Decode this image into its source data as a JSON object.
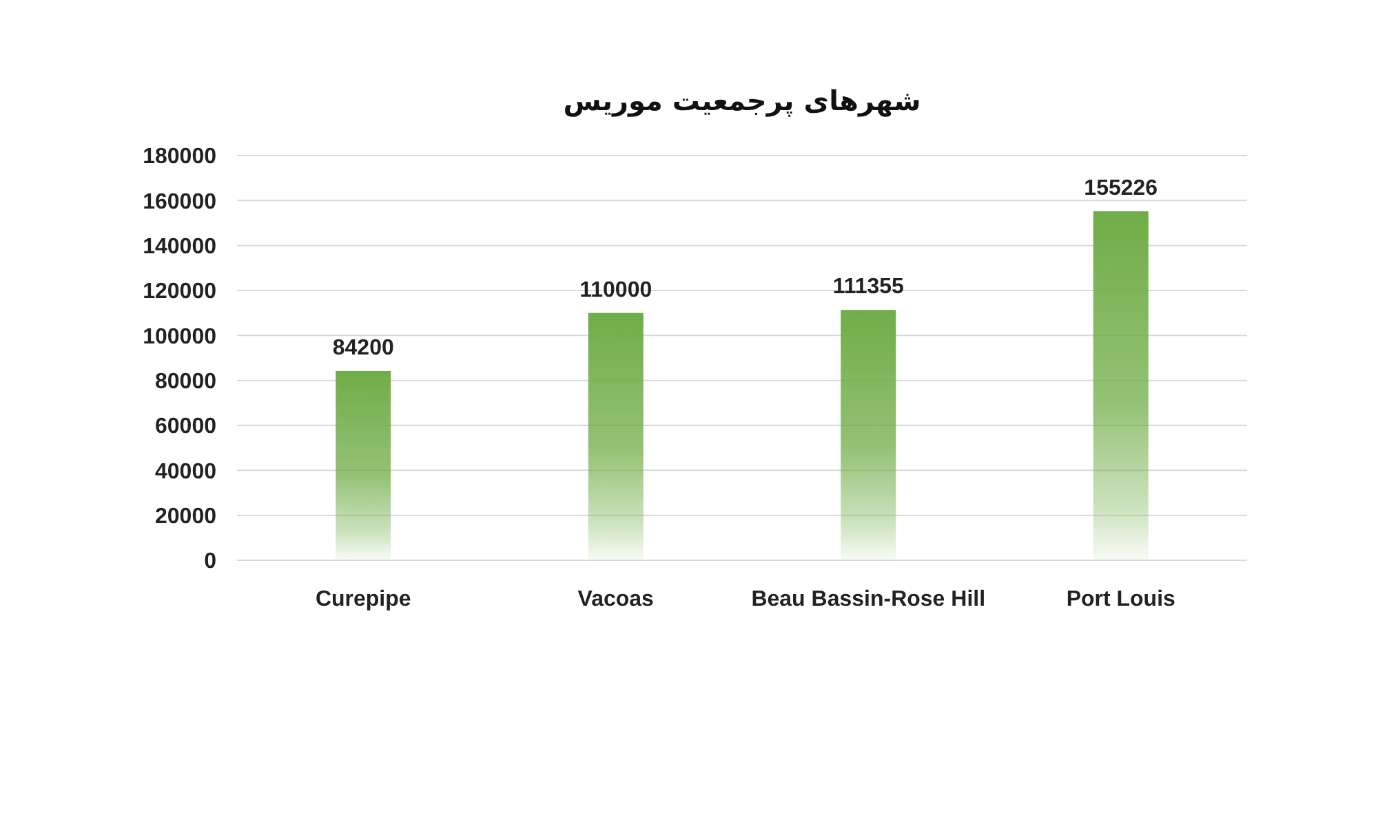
{
  "chart_data": {
    "type": "bar",
    "title": "شهرهای پرجمعیت موریس",
    "categories": [
      "Curepipe",
      "Vacoas",
      "Beau Bassin-Rose Hill",
      "Port Louis"
    ],
    "values": [
      84200,
      110000,
      111355,
      155226
    ],
    "color": "#70ad47",
    "ylim": [
      0,
      180000
    ],
    "yticks": [
      0,
      20000,
      40000,
      60000,
      80000,
      100000,
      120000,
      140000,
      160000,
      180000
    ],
    "grid": "y",
    "data_labels": true
  }
}
